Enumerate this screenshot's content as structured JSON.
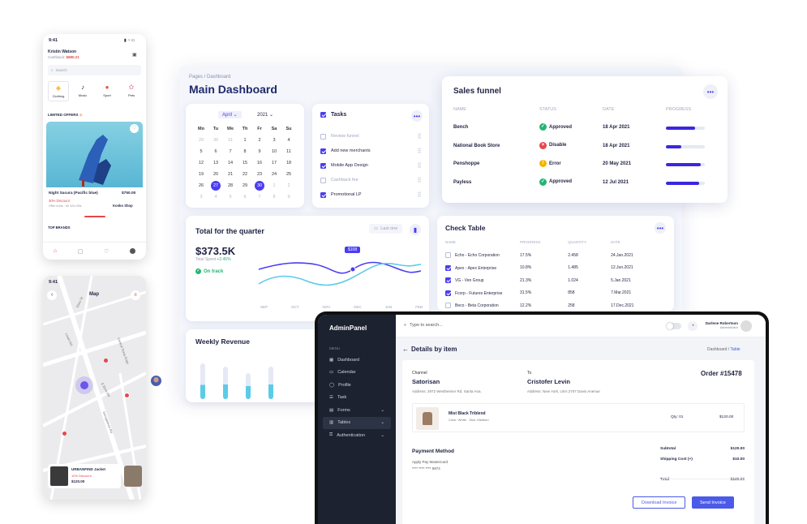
{
  "dashboard": {
    "breadcrumb": "Pages / Dashboard",
    "title": "Main Dashboard",
    "calendar": {
      "month": "April",
      "year": "2021",
      "weekdays": [
        "Mo",
        "Tu",
        "We",
        "Th",
        "Fr",
        "Sa",
        "Su"
      ],
      "rows": [
        [
          "29",
          "30",
          "31",
          "1",
          "2",
          "3",
          "4"
        ],
        [
          "5",
          "6",
          "7",
          "8",
          "9",
          "10",
          "11"
        ],
        [
          "12",
          "13",
          "14",
          "15",
          "16",
          "17",
          "18"
        ],
        [
          "19",
          "20",
          "21",
          "22",
          "23",
          "24",
          "25"
        ],
        [
          "26",
          "27",
          "28",
          "29",
          "30",
          "1",
          "2"
        ],
        [
          "3",
          "4",
          "5",
          "6",
          "7",
          "8",
          "9"
        ]
      ]
    },
    "tasks": {
      "title": "Tasks",
      "items": [
        {
          "label": "Review funnel",
          "checked": false
        },
        {
          "label": "Add new merchants",
          "checked": true
        },
        {
          "label": "Mobile App Design",
          "checked": true
        },
        {
          "label": "Cashback fee",
          "checked": false
        },
        {
          "label": "Promotional LP",
          "checked": true
        }
      ]
    },
    "quarter": {
      "title": "Total for the quarter",
      "period_button": "Last one",
      "amount": "$373.5K",
      "sub_label": "Total Spent",
      "change": "+2.45%",
      "status": "On track",
      "tooltip": "$108",
      "months": [
        "SEP",
        "OCT",
        "NOV",
        "DEC",
        "JAN",
        "FEB"
      ]
    },
    "weekly_title": "Weekly Revenue",
    "check_table": {
      "title": "Check Table",
      "headers": [
        "NAME",
        "PROGRESS",
        "QUANTITY",
        "DATE"
      ],
      "rows": [
        {
          "name": "Echo - Echo Corporation",
          "progress": "17.5%",
          "qty": "2.458",
          "date": "24.Jan.2021",
          "checked": false
        },
        {
          "name": "Apex - Apex Enterprise",
          "progress": "10.8%",
          "qty": "1.485",
          "date": "12.Jun.2021",
          "checked": true
        },
        {
          "name": "VG - Ven Group",
          "progress": "21.3%",
          "qty": "1.024",
          "date": "5.Jan.2021",
          "checked": true
        },
        {
          "name": "Fcorp - Futures Enterprise",
          "progress": "31.5%",
          "qty": "858",
          "date": "7.Mar.2021",
          "checked": true
        },
        {
          "name": "Beco - Beta Corporation",
          "progress": "12.2%",
          "qty": "258",
          "date": "17.Dec.2021",
          "checked": false
        }
      ]
    }
  },
  "sales_funnel": {
    "title": "Sales funnel",
    "headers": [
      "NAME",
      "STATUS",
      "DATE",
      "PROGRESS"
    ],
    "rows": [
      {
        "name": "Bench",
        "status": "Approved",
        "status_color": "#22b573",
        "date": "18 Apr 2021",
        "progress": 0.75
      },
      {
        "name": "National Book Store",
        "status": "Disable",
        "status_color": "#e5484d",
        "date": "18 Apr 2021",
        "progress": 0.4
      },
      {
        "name": "Penshoppe",
        "status": "Error",
        "status_color": "#f5b400",
        "date": "20 May 2021",
        "progress": 0.9
      },
      {
        "name": "Payless",
        "status": "Approved",
        "status_color": "#22b573",
        "date": "12 Jul 2021",
        "progress": 0.85
      }
    ]
  },
  "admin": {
    "brand": "AdminPanel",
    "menu_label": "MENU",
    "menu": [
      {
        "label": "Dashboard",
        "icon": "grid-icon"
      },
      {
        "label": "Calendar",
        "icon": "calendar-icon"
      },
      {
        "label": "Profile",
        "icon": "user-icon"
      },
      {
        "label": "Task",
        "icon": "list-icon"
      },
      {
        "label": "Forms",
        "icon": "form-icon"
      },
      {
        "label": "Tables",
        "icon": "table-icon"
      },
      {
        "label": "Authentication",
        "icon": "lock-icon"
      }
    ],
    "search_placeholder": "Type to search...",
    "user_name": "Darlene Robertson",
    "user_role": "Administrator",
    "page_title": "Details by item",
    "breadcrumb_root": "Dashboard",
    "breadcrumb_current": "Table",
    "channel_label": "Channel",
    "channel_name": "Satorisan",
    "channel_address": "Address: 2972 Westheimer Rd. Santa Ana.",
    "to_label": "To",
    "to_name": "Cristofer Levin",
    "to_address": "Address: New York, USA 2707 Davis Anenue",
    "order": "Order #15478",
    "item": {
      "name": "Mist Black Triblend",
      "color": "Color: White",
      "size": "Size: Medium",
      "qty": "Qty: 01",
      "price": "$120.00"
    },
    "payment_title": "Payment Method",
    "payment_line1": "Apply Pay  Mastercard",
    "payment_line2": "**** **** **** 5874",
    "totals": [
      {
        "label": "Subtotal",
        "value": "$120.00"
      },
      {
        "label": "Shipping Cost (+)",
        "value": "$10.00"
      },
      {
        "label": "Total",
        "value": "$130.00"
      }
    ],
    "download_button": "Download Invoice",
    "send_button": "Send Invoice"
  },
  "phone_shop": {
    "time": "9:41",
    "user": "Kristin Watson",
    "cashback_label": "Cashback:",
    "cashback_value": "$980.21",
    "search_placeholder": "Search",
    "categories": [
      "Clothing",
      "Music",
      "Sport",
      "Pets"
    ],
    "limited_label": "LIMITED OFFERS",
    "product_name": "Night Sacura (Pacific blue)",
    "product_price": "$750.00",
    "discount": "30% Discount",
    "offer_ends": "Offer ends : 6h 32m 55s",
    "shop": "Konko Shop",
    "brands_label": "TOP BRANDS"
  },
  "phone_map": {
    "time": "9:41",
    "title": "Map",
    "streets": [
      "Elmo St",
      "Lewis Rd",
      "Central Texas Expy",
      "E Elms Rd",
      "Georgetown Rd"
    ],
    "card_title": "URBANFIND Jacket",
    "card_discount": "10% Discount",
    "card_price": "$120.00"
  }
}
